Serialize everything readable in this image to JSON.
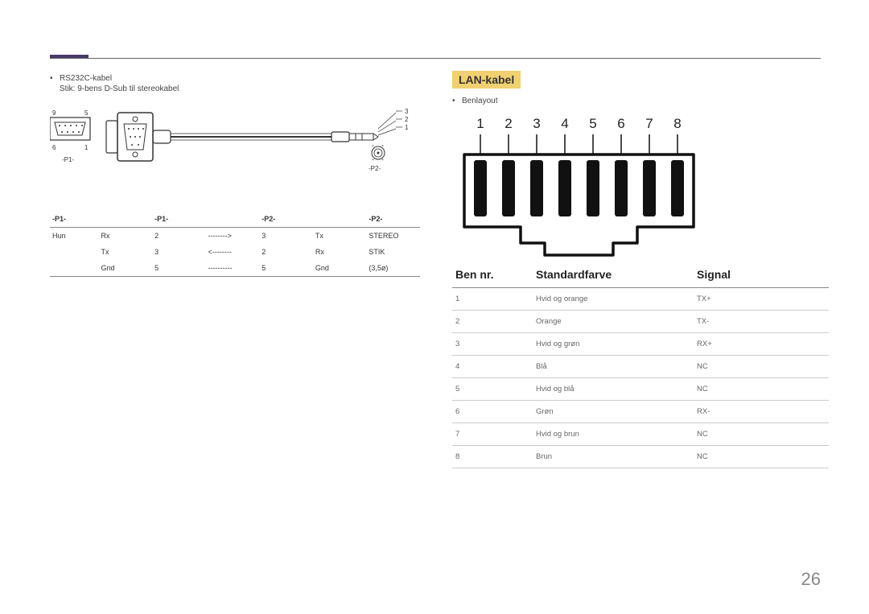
{
  "page_number": "26",
  "left": {
    "bullet": "RS232C-kabel",
    "subtitle": "Stik: 9-bens D-Sub til stereokabel",
    "diagram": {
      "p1_label": "-P1-",
      "p2_label": "-P2-",
      "pins_left": [
        "9",
        "5",
        "6",
        "1"
      ],
      "pins_right": [
        "3",
        "2",
        "1"
      ]
    },
    "table": {
      "headers": [
        "-P1-",
        "",
        "-P1-",
        "",
        "-P2-",
        "",
        "-P2-"
      ],
      "rows": [
        [
          "Hun",
          "Rx",
          "2",
          "-------->",
          "3",
          "Tx",
          "STEREO"
        ],
        [
          "",
          "Tx",
          "3",
          "<--------",
          "2",
          "Rx",
          "STIK"
        ],
        [
          "",
          "Gnd",
          "5",
          "----------",
          "5",
          "Gnd",
          "(3,5ø)"
        ]
      ]
    }
  },
  "right": {
    "title": "LAN-kabel",
    "bullet": "Benlayout",
    "pin_labels": [
      "1",
      "2",
      "3",
      "4",
      "5",
      "6",
      "7",
      "8"
    ],
    "table": {
      "headers": [
        "Ben nr.",
        "Standardfarve",
        "Signal"
      ],
      "rows": [
        [
          "1",
          "Hvid og orange",
          "TX+"
        ],
        [
          "2",
          "Orange",
          "TX-"
        ],
        [
          "3",
          "Hvid og grøn",
          "RX+"
        ],
        [
          "4",
          "Blå",
          "NC"
        ],
        [
          "5",
          "Hvid og blå",
          "NC"
        ],
        [
          "6",
          "Grøn",
          "RX-"
        ],
        [
          "7",
          "Hvid og brun",
          "NC"
        ],
        [
          "8",
          "Brun",
          "NC"
        ]
      ]
    }
  },
  "colors": {
    "accent": "#4a3a6a",
    "highlight": "#f0d070",
    "text": "#333333",
    "text_light": "#666666",
    "rule": "#888888",
    "row_rule": "#cccccc"
  }
}
